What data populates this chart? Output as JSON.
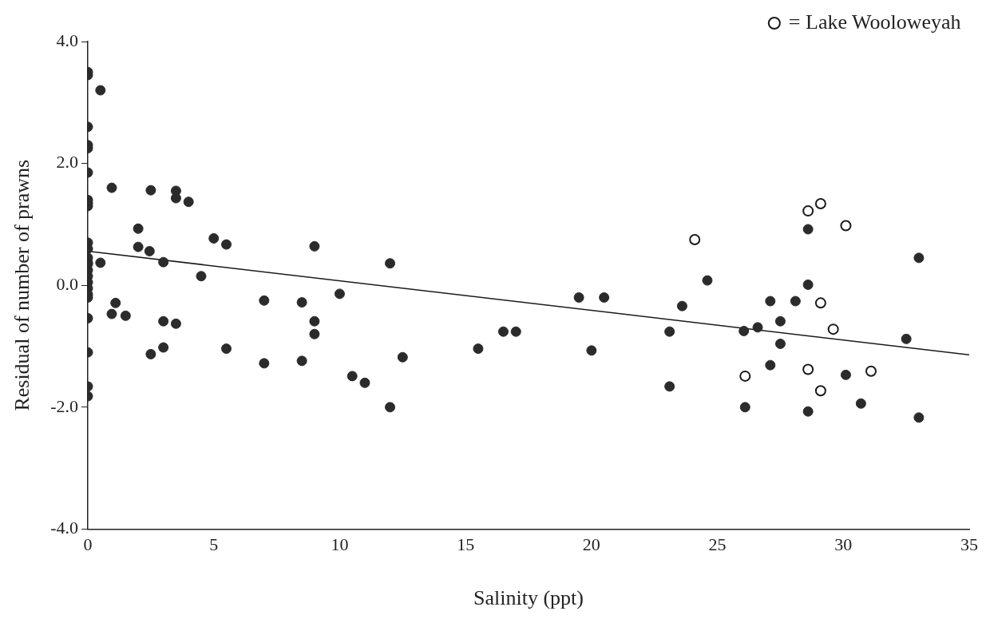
{
  "chart_data": {
    "type": "scatter",
    "xlabel": "Salinity (ppt)",
    "ylabel": "Residual of number of prawns",
    "xlim": [
      0,
      35
    ],
    "xticks": [
      0,
      5,
      10,
      15,
      20,
      25,
      30,
      35
    ],
    "ylim": [
      -4,
      4
    ],
    "yticks": [
      {
        "value": -4,
        "label": "-4.0"
      },
      {
        "value": -2,
        "label": "-2.0"
      },
      {
        "value": 0,
        "label": "0.0"
      },
      {
        "value": 2,
        "label": "2.0"
      },
      {
        "value": 4,
        "label": "4.0"
      }
    ],
    "grid": false,
    "legend": "top right",
    "marker": "circle",
    "series": [
      {
        "color": "#2b2b2b",
        "x": [
          0,
          0,
          0,
          0,
          0,
          0,
          0,
          0,
          0,
          0,
          0,
          0,
          0,
          0,
          0,
          0,
          0,
          0,
          0,
          0,
          0,
          0,
          0,
          0,
          0.5,
          0.95,
          0.5,
          0.95,
          1.1,
          1.5,
          2.0,
          2.0,
          2.45,
          2.5,
          3.0,
          3.0,
          3.0,
          2.5,
          3.5,
          3.5,
          3.5,
          4.0,
          4.5,
          5.0,
          5.5,
          5.5,
          7.0,
          7.0,
          8.5,
          8.5,
          9.0,
          9.0,
          9.0,
          10.0,
          10.5,
          11.0,
          12.0,
          12.0,
          12.5,
          15.5,
          16.5,
          17.0,
          19.5,
          20.5,
          20.0,
          24.6,
          23.6,
          23.1,
          23.1,
          26.05,
          26.1,
          26.6,
          27.1,
          27.1,
          27.5,
          27.5,
          28.6,
          28.6,
          28.1,
          30.1,
          30.7,
          28.6,
          33.0,
          32.5,
          33.0
        ],
        "values": [
          3.5,
          3.45,
          2.6,
          2.3,
          2.25,
          1.85,
          1.4,
          1.35,
          1.3,
          0.7,
          0.6,
          0.45,
          0.35,
          0.25,
          0.15,
          0.05,
          -0.05,
          -0.15,
          -0.2,
          -0.54,
          -1.1,
          -1.66,
          -1.82,
          0.37,
          3.2,
          1.6,
          0.37,
          -0.47,
          -0.29,
          -0.5,
          0.93,
          0.63,
          0.56,
          1.56,
          0.38,
          -0.59,
          -1.02,
          -1.13,
          1.55,
          1.43,
          -0.63,
          1.37,
          0.15,
          0.77,
          0.67,
          -1.04,
          -0.25,
          -1.28,
          -0.28,
          -1.24,
          0.64,
          -0.59,
          -0.8,
          -0.14,
          -1.49,
          -1.6,
          0.36,
          -2.0,
          -1.18,
          -1.04,
          -0.76,
          -0.76,
          -0.2,
          -0.2,
          -1.07,
          0.08,
          -0.34,
          -0.76,
          -1.66,
          -0.75,
          -2.0,
          -0.69,
          -1.31,
          -0.26,
          -0.59,
          -0.96,
          0.01,
          0.92,
          -0.26,
          -1.47,
          -1.94,
          -2.07,
          0.45,
          -0.88,
          -2.17
        ]
      },
      {
        "name": "= Lake Wooloweyah",
        "color": "#1a1a1a",
        "x": [
          24.1,
          28.6,
          29.1,
          30.1,
          29.1,
          29.6,
          26.1,
          28.6,
          31.1,
          29.1
        ],
        "values": [
          0.75,
          1.22,
          1.34,
          0.98,
          -0.29,
          -0.72,
          -1.49,
          -1.38,
          -1.41,
          -1.73
        ]
      },
      {
        "type": "line",
        "color": "#1a1a1a",
        "marker": "none",
        "x": [
          0,
          35
        ],
        "values": [
          0.56,
          -1.14
        ]
      }
    ]
  }
}
